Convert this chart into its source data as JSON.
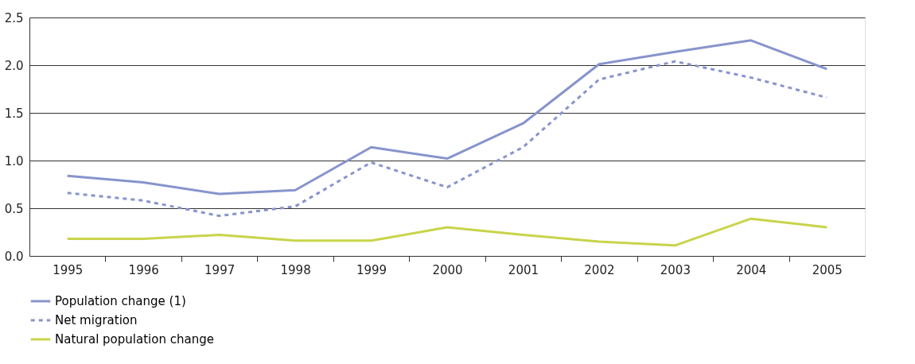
{
  "chart_data": {
    "type": "line",
    "categories": [
      "1995",
      "1996",
      "1997",
      "1998",
      "1999",
      "2000",
      "2001",
      "2002",
      "2003",
      "2004",
      "2005"
    ],
    "series": [
      {
        "name": "Population change (1)",
        "color": "#8794cc",
        "line_style": "solid",
        "values": [
          0.84,
          0.77,
          0.65,
          0.69,
          1.14,
          1.02,
          1.39,
          2.01,
          2.14,
          2.26,
          1.96
        ]
      },
      {
        "name": "Net migration",
        "color": "#8794cc",
        "line_style": "dashed",
        "values": [
          0.66,
          0.58,
          0.42,
          0.52,
          0.98,
          0.72,
          1.14,
          1.85,
          2.04,
          1.87,
          1.66
        ]
      },
      {
        "name": "Natural population change",
        "color": "#c8d44a",
        "line_style": "solid",
        "values": [
          0.18,
          0.18,
          0.22,
          0.16,
          0.16,
          0.3,
          0.22,
          0.15,
          0.11,
          0.39,
          0.3
        ]
      }
    ],
    "ylim": [
      0,
      2.5
    ],
    "yticks": [
      {
        "value": 0,
        "label": "0.0"
      },
      0.5,
      {
        "value": 1,
        "label": "1.0"
      },
      1.5,
      {
        "value": 2,
        "label": "2.0"
      },
      2.5
    ],
    "grid": "y",
    "legend": "bottom",
    "marker": "none"
  }
}
